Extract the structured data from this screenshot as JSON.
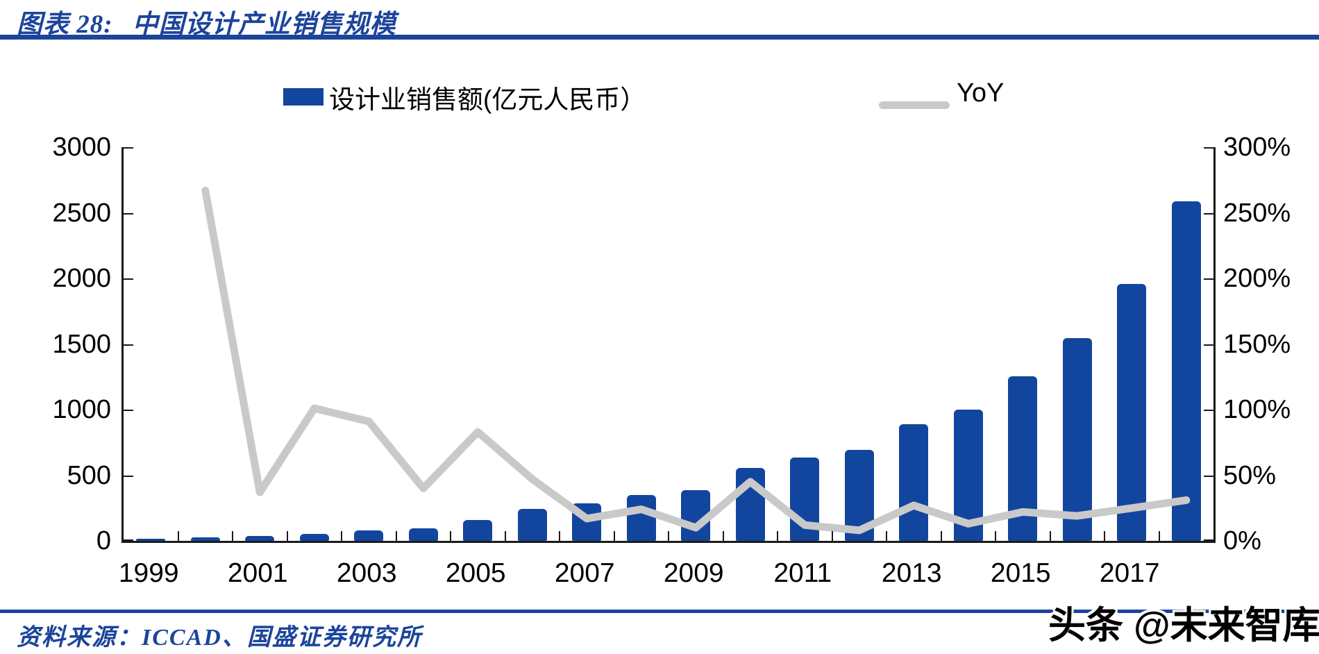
{
  "header": {
    "figure_label": "图表 28:",
    "title": "中国设计产业销售规模"
  },
  "legend": {
    "bars_label": "设计业销售额(亿元人民币）",
    "line_label": "YoY"
  },
  "chart_data": {
    "type": "bar",
    "subtype": "bar+line combo, dual axis",
    "title": "中国设计产业销售规模",
    "categories": [
      1999,
      2000,
      2001,
      2002,
      2003,
      2004,
      2005,
      2006,
      2007,
      2008,
      2009,
      2010,
      2011,
      2012,
      2013,
      2014,
      2015,
      2016,
      2017,
      2018
    ],
    "series": [
      {
        "name": "设计业销售额(亿元人民币）",
        "type": "bar",
        "axis": "left",
        "color": "#12459E",
        "values": [
          15,
          25,
          35,
          55,
          80,
          95,
          160,
          245,
          285,
          350,
          385,
          555,
          635,
          695,
          890,
          1000,
          1255,
          1545,
          1960,
          2590
        ]
      },
      {
        "name": "YoY",
        "type": "line",
        "axis": "right",
        "color": "#C9C9C9",
        "unit": "%",
        "values": [
          null,
          267,
          37,
          101,
          91,
          40,
          83,
          47,
          17,
          24,
          10,
          45,
          12,
          8,
          27,
          13,
          22,
          19,
          25,
          31
        ]
      }
    ],
    "left_axis": {
      "label": "",
      "min": 0,
      "max": 3000,
      "tick_step": 500,
      "tick_labels_top_down": [
        "3000",
        "2500",
        "2000",
        "1500",
        "1000",
        "500",
        "0"
      ]
    },
    "right_axis": {
      "label": "",
      "min": 0,
      "max": 300,
      "tick_step": 50,
      "tick_labels_top_down": [
        "300%",
        "250%",
        "200%",
        "150%",
        "100%",
        "50%",
        "0%"
      ]
    },
    "x_tick_labels": [
      "1999",
      "2001",
      "2003",
      "2005",
      "2007",
      "2009",
      "2011",
      "2013",
      "2015",
      "2017"
    ],
    "grid": false,
    "legend_position": "top"
  },
  "footer": {
    "source_label": "资料来源：",
    "source_text": "ICCAD、国盛证券研究所"
  },
  "watermark": {
    "text": "头条 @未来智库"
  },
  "colors": {
    "bar_blue": "#12459E",
    "line_gray": "#C9C9C9",
    "title_blue": "#1C449B",
    "rule_blue": "#1C449B",
    "axis_black": "#1a1a1a"
  }
}
